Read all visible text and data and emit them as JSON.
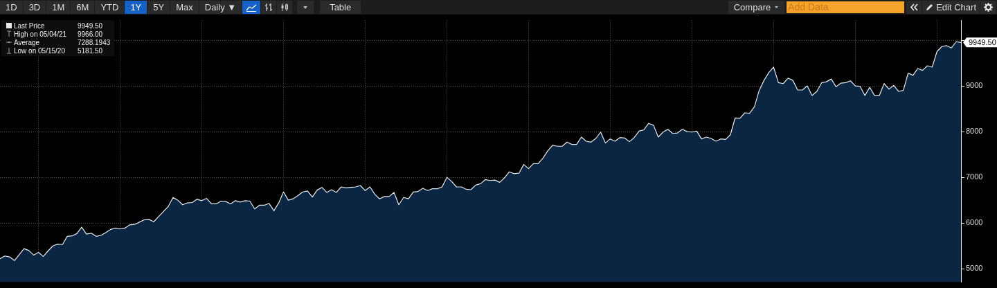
{
  "chart_data": {
    "type": "area",
    "categories": [
      null,
      null,
      null,
      null,
      null,
      null,
      null,
      null,
      null,
      null,
      null,
      null,
      null,
      null,
      null,
      null,
      null,
      null,
      null,
      null,
      null,
      null,
      null,
      null,
      null,
      null,
      null,
      null,
      null,
      null,
      null,
      null,
      null,
      null,
      null,
      null,
      null,
      null,
      null,
      null,
      null,
      null,
      null,
      null,
      null,
      null,
      null,
      null,
      null,
      null,
      null,
      null,
      null,
      null,
      null,
      null,
      null,
      null,
      null,
      null,
      null,
      null,
      null,
      null,
      null,
      null,
      null,
      null,
      null,
      null,
      null,
      null,
      null,
      null,
      null,
      null,
      null,
      null,
      null,
      null,
      null,
      null,
      null,
      null,
      null,
      null,
      null,
      null,
      null,
      null,
      null,
      null,
      null,
      null,
      null,
      null,
      null,
      null,
      null,
      null,
      null,
      null,
      null,
      null,
      null,
      null,
      null,
      null,
      null,
      null,
      null,
      null,
      null,
      null,
      null,
      null,
      null,
      null,
      null,
      null,
      null,
      null,
      null,
      null,
      null,
      null,
      null,
      null,
      null,
      null,
      null,
      null,
      null,
      null,
      null,
      null,
      null,
      null,
      null,
      null,
      null,
      null,
      null,
      null,
      null,
      null,
      null,
      null,
      null,
      null,
      null,
      null,
      null,
      null,
      null,
      null,
      null,
      null,
      null,
      null,
      null,
      null,
      null,
      null,
      null,
      null,
      null,
      null,
      null,
      null,
      null,
      null,
      null,
      null,
      null,
      null,
      null,
      null,
      null,
      null,
      null,
      null,
      null,
      null,
      null,
      null,
      null,
      null,
      null,
      null,
      null,
      null,
      null,
      null,
      null,
      null,
      null,
      null,
      null,
      null,
      null
    ],
    "series": [
      {
        "name": "Last Price",
        "color": "#e6ebf0",
        "values": [
          5220,
          5280,
          5260,
          5181.5,
          5310,
          5440,
          5400,
          5300,
          5360,
          5270,
          5390,
          5500,
          5540,
          5530,
          5710,
          5720,
          5770,
          5910,
          5760,
          5780,
          5710,
          5730,
          5790,
          5860,
          5890,
          5870,
          5890,
          5960,
          5970,
          6020,
          6070,
          6080,
          6030,
          6140,
          6250,
          6360,
          6560,
          6500,
          6400,
          6440,
          6450,
          6520,
          6490,
          6540,
          6420,
          6420,
          6480,
          6470,
          6420,
          6490,
          6460,
          6490,
          6480,
          6310,
          6390,
          6390,
          6430,
          6270,
          6440,
          6680,
          6500,
          6530,
          6600,
          6680,
          6700,
          6570,
          6720,
          6780,
          6670,
          6730,
          6670,
          6790,
          6770,
          6780,
          6790,
          6820,
          6710,
          6790,
          6630,
          6530,
          6580,
          6580,
          6670,
          6400,
          6560,
          6530,
          6680,
          6690,
          6760,
          6710,
          6750,
          6750,
          6790,
          7000,
          6910,
          6790,
          6790,
          6740,
          6730,
          6830,
          6860,
          6950,
          6930,
          6940,
          6890,
          6990,
          7120,
          7080,
          7090,
          7280,
          7190,
          7300,
          7300,
          7420,
          7580,
          7700,
          7680,
          7680,
          7770,
          7720,
          7720,
          7880,
          7790,
          7770,
          7850,
          7990,
          7750,
          7840,
          7790,
          7870,
          7860,
          7780,
          7870,
          8010,
          8040,
          8180,
          8140,
          7880,
          7990,
          8050,
          7960,
          7970,
          8050,
          8000,
          7990,
          8010,
          7840,
          7880,
          7850,
          7790,
          7840,
          7830,
          7930,
          8300,
          8290,
          8410,
          8400,
          8540,
          8900,
          9120,
          9290,
          9410,
          9070,
          9050,
          9170,
          9120,
          8910,
          8910,
          9000,
          8790,
          8880,
          9070,
          9090,
          9150,
          8980,
          9060,
          9070,
          9110,
          9000,
          8990,
          8790,
          8970,
          8790,
          8790,
          9050,
          8930,
          9010,
          8880,
          8900,
          9280,
          9230,
          9380,
          9340,
          9440,
          9410,
          9750,
          9860,
          9880,
          9830,
          9966,
          9949.5
        ]
      }
    ],
    "ylim": [
      4710,
      10430
    ],
    "yticks": [
      5000,
      6000,
      7000,
      8000,
      9000,
      {
        "value": 10000,
        "label": null
      }
    ],
    "grid": true,
    "legend": "top left",
    "marker": "none",
    "tick_labels": "y",
    "annotations": [
      "9949.50",
      "High on 05/04/21",
      "9966.00",
      "Average",
      "7288.1943",
      "Low on 05/15/20",
      "5181.50",
      "1D",
      "3D",
      "1M",
      "6M",
      "YTD",
      "1Y",
      "5Y",
      "Max",
      "Daily ▼",
      "Table",
      "Compare",
      "Add Data",
      "Edit Chart",
      "9949.50"
    ]
  }
}
